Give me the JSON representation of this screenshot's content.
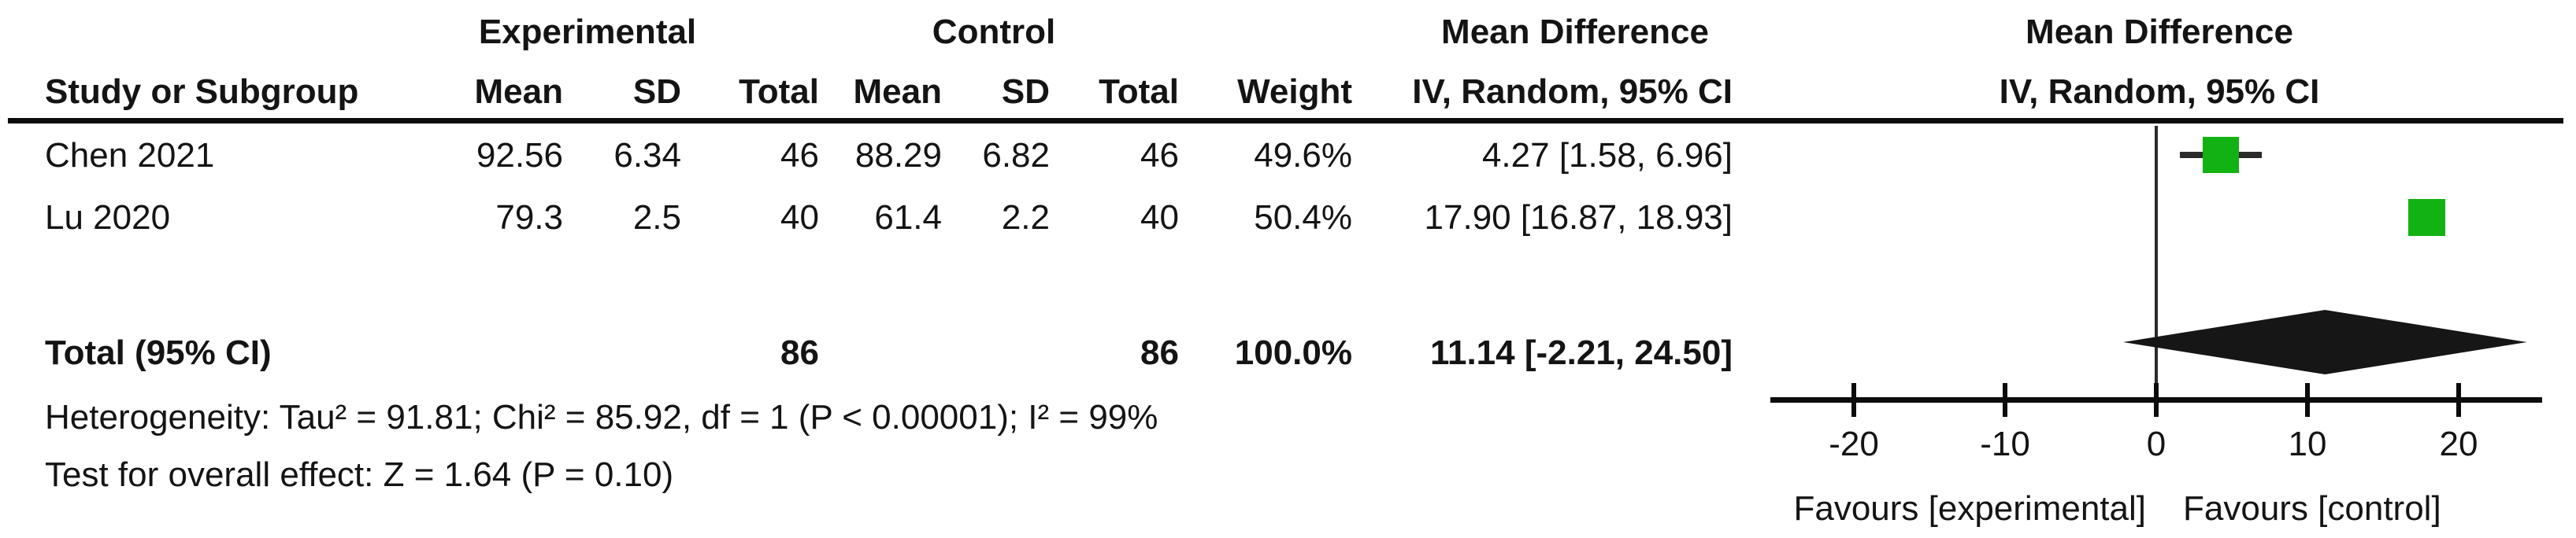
{
  "table": {
    "group_headers": {
      "experimental": "Experimental",
      "control": "Control",
      "mean_difference_col": "Mean Difference",
      "mean_difference_plot": "Mean Difference"
    },
    "col_headers": {
      "study": "Study or Subgroup",
      "mean_e": "Mean",
      "sd_e": "SD",
      "total_e": "Total",
      "mean_c": "Mean",
      "sd_c": "SD",
      "total_c": "Total",
      "weight": "Weight",
      "ci": "IV, Random, 95% CI",
      "ci_plot": "IV, Random, 95% CI"
    },
    "rows": [
      {
        "study": "Chen 2021",
        "mean_e": "92.56",
        "sd_e": "6.34",
        "total_e": "46",
        "mean_c": "88.29",
        "sd_c": "6.82",
        "total_c": "46",
        "weight": "49.6%",
        "ci": "4.27 [1.58, 6.96]"
      },
      {
        "study": "Lu 2020",
        "mean_e": "79.3",
        "sd_e": "2.5",
        "total_e": "40",
        "mean_c": "61.4",
        "sd_c": "2.2",
        "total_c": "40",
        "weight": "50.4%",
        "ci": "17.90 [16.87, 18.93]"
      }
    ],
    "total_row": {
      "label": "Total (95% CI)",
      "total_e": "86",
      "total_c": "86",
      "weight": "100.0%",
      "ci": "11.14 [-2.21, 24.50]"
    },
    "heterogeneity": "Heterogeneity: Tau² = 91.81; Chi² = 85.92, df = 1 (P < 0.00001); I² = 99%",
    "overall_effect": "Test for overall effect: Z = 1.64 (P = 0.10)"
  },
  "plot": {
    "favours_left": "Favours [experimental]",
    "favours_right": "Favours [control]",
    "marker_color": "#12b212",
    "diamond_color": "#161616",
    "line_color": "#2a2a2a"
  },
  "chart_data": {
    "type": "forest",
    "effect_measure": "Mean Difference, IV, Random, 95% CI",
    "studies": [
      {
        "name": "Chen 2021",
        "exp_mean": 92.56,
        "exp_sd": 6.34,
        "exp_n": 46,
        "ctl_mean": 88.29,
        "ctl_sd": 6.82,
        "ctl_n": 46,
        "weight_pct": 49.6,
        "md": 4.27,
        "ci_low": 1.58,
        "ci_high": 6.96
      },
      {
        "name": "Lu 2020",
        "exp_mean": 79.3,
        "exp_sd": 2.5,
        "exp_n": 40,
        "ctl_mean": 61.4,
        "ctl_sd": 2.2,
        "ctl_n": 40,
        "weight_pct": 50.4,
        "md": 17.9,
        "ci_low": 16.87,
        "ci_high": 18.93
      }
    ],
    "total": {
      "exp_n": 86,
      "ctl_n": 86,
      "weight_pct": 100.0,
      "md": 11.14,
      "ci_low": -2.21,
      "ci_high": 24.5
    },
    "heterogeneity": {
      "tau2": 91.81,
      "chi2": 85.92,
      "df": 1,
      "p": "< 0.00001",
      "i2_pct": 99
    },
    "overall_effect": {
      "z": 1.64,
      "p": 0.1
    },
    "xaxis": {
      "ticks": [
        -20,
        -10,
        0,
        10,
        20
      ],
      "range": [
        -25.5,
        25.5
      ]
    },
    "favours": [
      "Favours [experimental]",
      "Favours [control]"
    ]
  }
}
